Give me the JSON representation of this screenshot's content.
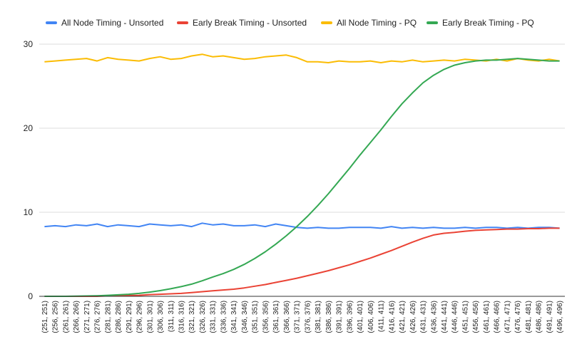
{
  "chart_data": {
    "type": "line",
    "title": "",
    "xlabel": "",
    "ylabel": "",
    "ylim": [
      0,
      30
    ],
    "y_ticks": [
      0,
      10,
      20,
      30
    ],
    "grid": true,
    "legend_position": "top",
    "x_labels": [
      "(251, 251)",
      "(256, 256)",
      "(261, 261)",
      "(266, 266)",
      "(271, 271)",
      "(276, 276)",
      "(281, 281)",
      "(286, 286)",
      "(291, 291)",
      "(296, 296)",
      "(301, 301)",
      "(306, 306)",
      "(311, 311)",
      "(316, 316)",
      "(321, 321)",
      "(326, 326)",
      "(331, 331)",
      "(336, 336)",
      "(341, 341)",
      "(346, 346)",
      "(351, 351)",
      "(356, 356)",
      "(361, 361)",
      "(366, 366)",
      "(371, 371)",
      "(376, 376)",
      "(381, 381)",
      "(386, 386)",
      "(391, 391)",
      "(396, 396)",
      "(401, 401)",
      "(406, 406)",
      "(411, 411)",
      "(416, 416)",
      "(421, 421)",
      "(426, 426)",
      "(431, 431)",
      "(436, 436)",
      "(441, 441)",
      "(446, 446)",
      "(451, 451)",
      "(456, 456)",
      "(461, 461)",
      "(466, 466)",
      "(471, 471)",
      "(476, 476)",
      "(481, 481)",
      "(486, 486)",
      "(491, 491)",
      "(496, 496)"
    ],
    "series": [
      {
        "name": "All Node Timing - Unsorted",
        "color": "#4285f4",
        "values": [
          8.3,
          8.4,
          8.3,
          8.5,
          8.4,
          8.6,
          8.3,
          8.5,
          8.4,
          8.3,
          8.6,
          8.5,
          8.4,
          8.5,
          8.3,
          8.7,
          8.5,
          8.6,
          8.4,
          8.4,
          8.5,
          8.3,
          8.6,
          8.4,
          8.2,
          8.1,
          8.2,
          8.1,
          8.1,
          8.2,
          8.2,
          8.2,
          8.1,
          8.3,
          8.1,
          8.2,
          8.1,
          8.2,
          8.1,
          8.1,
          8.2,
          8.1,
          8.2,
          8.2,
          8.1,
          8.2,
          8.1,
          8.2,
          8.2,
          8.1
        ]
      },
      {
        "name": "Early Break Timing - Unsorted",
        "color": "#ea4335",
        "values": [
          0.0,
          0.0,
          0.0,
          0.0,
          0.0,
          0.0,
          0.05,
          0.08,
          0.1,
          0.12,
          0.2,
          0.25,
          0.3,
          0.35,
          0.45,
          0.55,
          0.65,
          0.75,
          0.85,
          1.0,
          1.2,
          1.4,
          1.65,
          1.9,
          2.15,
          2.45,
          2.75,
          3.05,
          3.4,
          3.75,
          4.15,
          4.55,
          5.0,
          5.45,
          5.95,
          6.45,
          6.9,
          7.3,
          7.5,
          7.6,
          7.75,
          7.85,
          7.9,
          7.95,
          8.0,
          8.0,
          8.05,
          8.05,
          8.1,
          8.1
        ]
      },
      {
        "name": "All Node Timing - PQ",
        "color": "#fbbc04",
        "values": [
          27.9,
          28.0,
          28.1,
          28.2,
          28.3,
          28.0,
          28.4,
          28.2,
          28.1,
          28.0,
          28.3,
          28.5,
          28.2,
          28.3,
          28.6,
          28.8,
          28.5,
          28.6,
          28.4,
          28.2,
          28.3,
          28.5,
          28.6,
          28.7,
          28.4,
          27.9,
          27.9,
          27.8,
          28.0,
          27.9,
          27.9,
          28.0,
          27.8,
          28.0,
          27.9,
          28.1,
          27.9,
          28.0,
          28.1,
          28.0,
          28.2,
          28.1,
          28.0,
          28.2,
          28.0,
          28.3,
          28.1,
          28.0,
          28.2,
          28.0
        ]
      },
      {
        "name": "Early Break Timing - PQ",
        "color": "#34a853",
        "values": [
          0.0,
          0.0,
          0.0,
          0.02,
          0.04,
          0.07,
          0.12,
          0.18,
          0.25,
          0.35,
          0.5,
          0.68,
          0.9,
          1.15,
          1.45,
          1.85,
          2.3,
          2.7,
          3.2,
          3.8,
          4.5,
          5.3,
          6.2,
          7.2,
          8.3,
          9.5,
          10.8,
          12.2,
          13.7,
          15.2,
          16.8,
          18.3,
          19.8,
          21.4,
          22.9,
          24.2,
          25.4,
          26.3,
          27.0,
          27.5,
          27.8,
          28.0,
          28.1,
          28.1,
          28.2,
          28.3,
          28.2,
          28.1,
          28.0,
          28.0
        ]
      }
    ]
  }
}
